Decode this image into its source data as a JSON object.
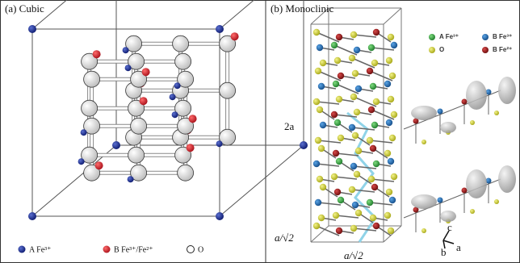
{
  "panel_a": {
    "title": "(a) Cubic",
    "legend": [
      "A Fe³⁺",
      "B Fe³⁺/Fe²⁺",
      "O"
    ]
  },
  "panel_b": {
    "title": "(b) Monoclinic",
    "legend": [
      "A Fe³⁺",
      "B Fe³⁺",
      "O",
      "B Fe²⁺"
    ],
    "axis_labels": [
      "2a",
      "a/√2",
      "a/√2"
    ],
    "lattice_labels": [
      "c",
      "b",
      "a"
    ]
  }
}
